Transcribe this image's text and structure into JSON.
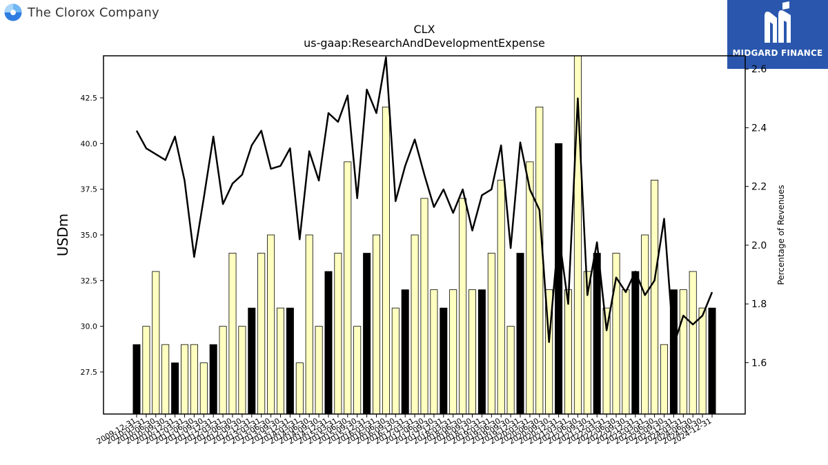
{
  "brand": {
    "company_name": "The Clorox Company",
    "logo_icon": "clorox-swirl-icon"
  },
  "partner": {
    "name": "MIDGARD FINANCE",
    "icon": "midgard-m-icon",
    "color": "#2a57ad"
  },
  "chart_data": {
    "type": "bar",
    "title": "CLX",
    "subtitle": "us-gaap:ResearchAndDevelopmentExpense",
    "ylabel": "USDm",
    "y2label": "Percentage of Revenues",
    "ylim": [
      25.2,
      44.8
    ],
    "y2lim": [
      1.425,
      2.645
    ],
    "yticks": [
      "27.5",
      "30.0",
      "32.5",
      "35.0",
      "37.5",
      "40.0",
      "42.5"
    ],
    "y2ticks": [
      "1.6",
      "1.8",
      "2.0",
      "2.2",
      "2.4",
      "2.6"
    ],
    "colors": {
      "fiscal_year": "#000000",
      "quarter": "#ffffc0",
      "line": "#000000"
    },
    "categories": [
      "2009-12-31",
      "2010-03-31",
      "2010-06-30",
      "2010-09-30",
      "2010-12-31",
      "2011-03-31",
      "2011-06-30",
      "2011-09-30",
      "2011-12-31",
      "2012-03-31",
      "2012-06-30",
      "2012-09-30",
      "2012-12-31",
      "2013-03-31",
      "2013-06-30",
      "2013-09-30",
      "2013-12-31",
      "2014-03-31",
      "2014-06-30",
      "2014-09-30",
      "2014-12-31",
      "2015-03-31",
      "2015-06-30",
      "2015-09-30",
      "2015-12-31",
      "2016-03-31",
      "2016-06-30",
      "2016-09-30",
      "2016-12-31",
      "2017-03-31",
      "2017-06-30",
      "2017-09-30",
      "2017-12-31",
      "2018-03-31",
      "2018-06-30",
      "2018-09-30",
      "2018-12-31",
      "2019-03-31",
      "2019-06-30",
      "2019-09-30",
      "2019-12-31",
      "2020-03-31",
      "2020-06-30",
      "2020-09-30",
      "2020-12-31",
      "2021-03-31",
      "2021-06-30",
      "2021-09-30",
      "2021-12-31",
      "2022-03-31",
      "2022-06-30",
      "2022-09-30",
      "2022-12-31",
      "2023-03-31",
      "2023-06-30",
      "2023-09-30",
      "2023-12-31",
      "2024-03-31",
      "2024-06-30",
      "2024-09-30",
      "2024-12-31"
    ],
    "series": [
      {
        "kind": "bar",
        "values": [
          29,
          30,
          33,
          29,
          28,
          29,
          29,
          28,
          29,
          30,
          34,
          30,
          31,
          34,
          35,
          31,
          31,
          28,
          35,
          30,
          33,
          34,
          39,
          30,
          34,
          35,
          42,
          31,
          32,
          35,
          37,
          32,
          31,
          32,
          37,
          32,
          32,
          34,
          38,
          30,
          34,
          39,
          42,
          32,
          40,
          32,
          46,
          33,
          34,
          31,
          34,
          32,
          33,
          35,
          38,
          29,
          32,
          32,
          33,
          31,
          31
        ],
        "fiscal_year_flags": [
          true,
          false,
          false,
          false,
          true,
          false,
          false,
          false,
          true,
          false,
          false,
          false,
          true,
          false,
          false,
          false,
          true,
          false,
          false,
          false,
          true,
          false,
          false,
          false,
          true,
          false,
          false,
          false,
          true,
          false,
          false,
          false,
          true,
          false,
          false,
          false,
          true,
          false,
          false,
          false,
          true,
          false,
          false,
          false,
          true,
          false,
          false,
          false,
          true,
          false,
          false,
          false,
          true,
          false,
          false,
          false,
          true,
          false,
          false,
          false,
          true
        ]
      },
      {
        "kind": "line",
        "values": [
          2.39,
          2.33,
          2.31,
          2.29,
          2.37,
          2.22,
          1.96,
          2.16,
          2.37,
          2.14,
          2.21,
          2.24,
          2.34,
          2.39,
          2.26,
          2.27,
          2.33,
          2.02,
          2.32,
          2.22,
          2.45,
          2.42,
          2.51,
          2.16,
          2.53,
          2.45,
          2.64,
          2.15,
          2.27,
          2.36,
          2.24,
          2.13,
          2.19,
          2.11,
          2.19,
          2.05,
          2.17,
          2.19,
          2.34,
          1.99,
          2.35,
          2.19,
          2.12,
          1.67,
          2.04,
          1.8,
          2.5,
          1.83,
          2.01,
          1.71,
          1.89,
          1.84,
          1.91,
          1.83,
          1.88,
          2.09,
          1.66,
          1.76,
          1.73,
          1.76,
          1.84
        ]
      }
    ]
  }
}
